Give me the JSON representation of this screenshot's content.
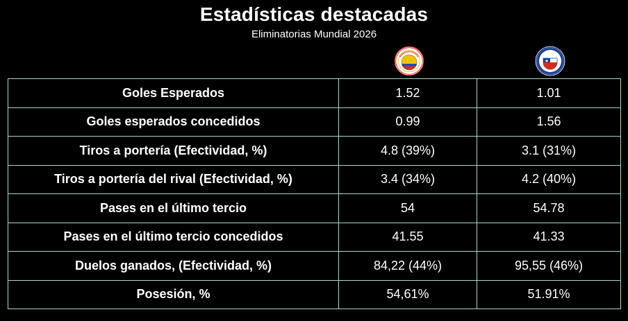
{
  "header": {
    "title": "Estadísticas destacadas",
    "subtitle": "Eliminatorias Mundial 2026"
  },
  "teams": [
    {
      "crest_icon": "colombia-federation-crest-icon"
    },
    {
      "crest_icon": "chile-federation-crest-icon"
    }
  ],
  "colors": {
    "background": "#000000",
    "text": "#ffffff",
    "table_border": "#a6dcc3"
  },
  "rows": [
    {
      "label": "Goles Esperados",
      "team1": "1.52",
      "team2": "1.01"
    },
    {
      "label": "Goles esperados concedidos",
      "team1": "0.99",
      "team2": "1.56"
    },
    {
      "label": "Tiros a portería (Efectividad, %)",
      "team1": "4.8 (39%)",
      "team2": "3.1 (31%)"
    },
    {
      "label": "Tiros a portería del rival (Efectividad, %)",
      "team1": "3.4 (34%)",
      "team2": "4.2 (40%)"
    },
    {
      "label": "Pases en el último tercio",
      "team1": "54",
      "team2": "54.78"
    },
    {
      "label": "Pases en el último tercio concedidos",
      "team1": "41.55",
      "team2": "41.33"
    },
    {
      "label": "Duelos ganados, (Efectividad, %)",
      "team1": "84,22 (44%)",
      "team2": "95,55 (46%)"
    },
    {
      "label": "Posesión, %",
      "team1": "54,61%",
      "team2": "51.91%"
    }
  ]
}
